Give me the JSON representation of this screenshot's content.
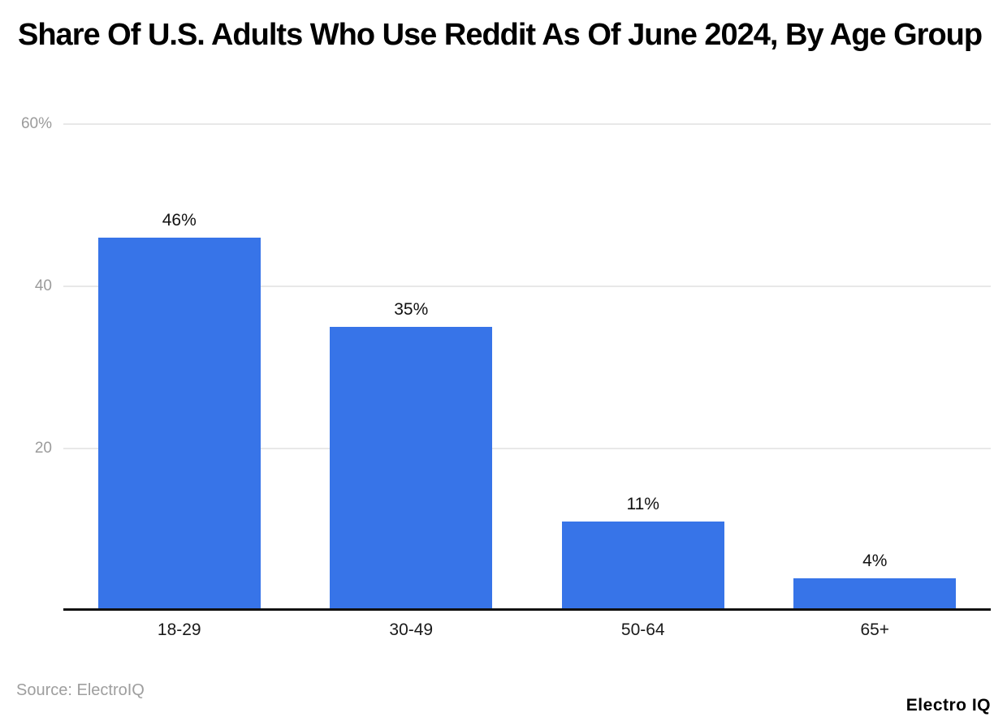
{
  "header": {
    "title": "Share Of U.S. Adults Who Use Reddit As Of June 2024, By Age Group"
  },
  "footer": {
    "source": "Source: ElectroIQ",
    "logo": "Electro IQ"
  },
  "colors": {
    "bar": "#3774e8",
    "gridline": "#e8e8e8",
    "tick_label": "#9b9b9b",
    "axis_line": "#111111",
    "data_label": "#111111",
    "background": "#ffffff"
  },
  "chart_data": {
    "type": "bar",
    "title": "Share Of U.S. Adults Who Use Reddit As Of June 2024, By Age Group",
    "categories": [
      "18-29",
      "30-49",
      "50-64",
      "65+"
    ],
    "values": [
      46,
      35,
      11,
      4
    ],
    "data_labels": [
      "46%",
      "35%",
      "11%",
      "4%"
    ],
    "xlabel": "",
    "ylabel": "",
    "ylim": [
      0,
      60
    ],
    "yticks": [
      {
        "value": 20,
        "label": "20"
      },
      {
        "value": 40,
        "label": "40"
      },
      {
        "value": 60,
        "label": "60%"
      }
    ],
    "grid": true,
    "legend": false
  }
}
